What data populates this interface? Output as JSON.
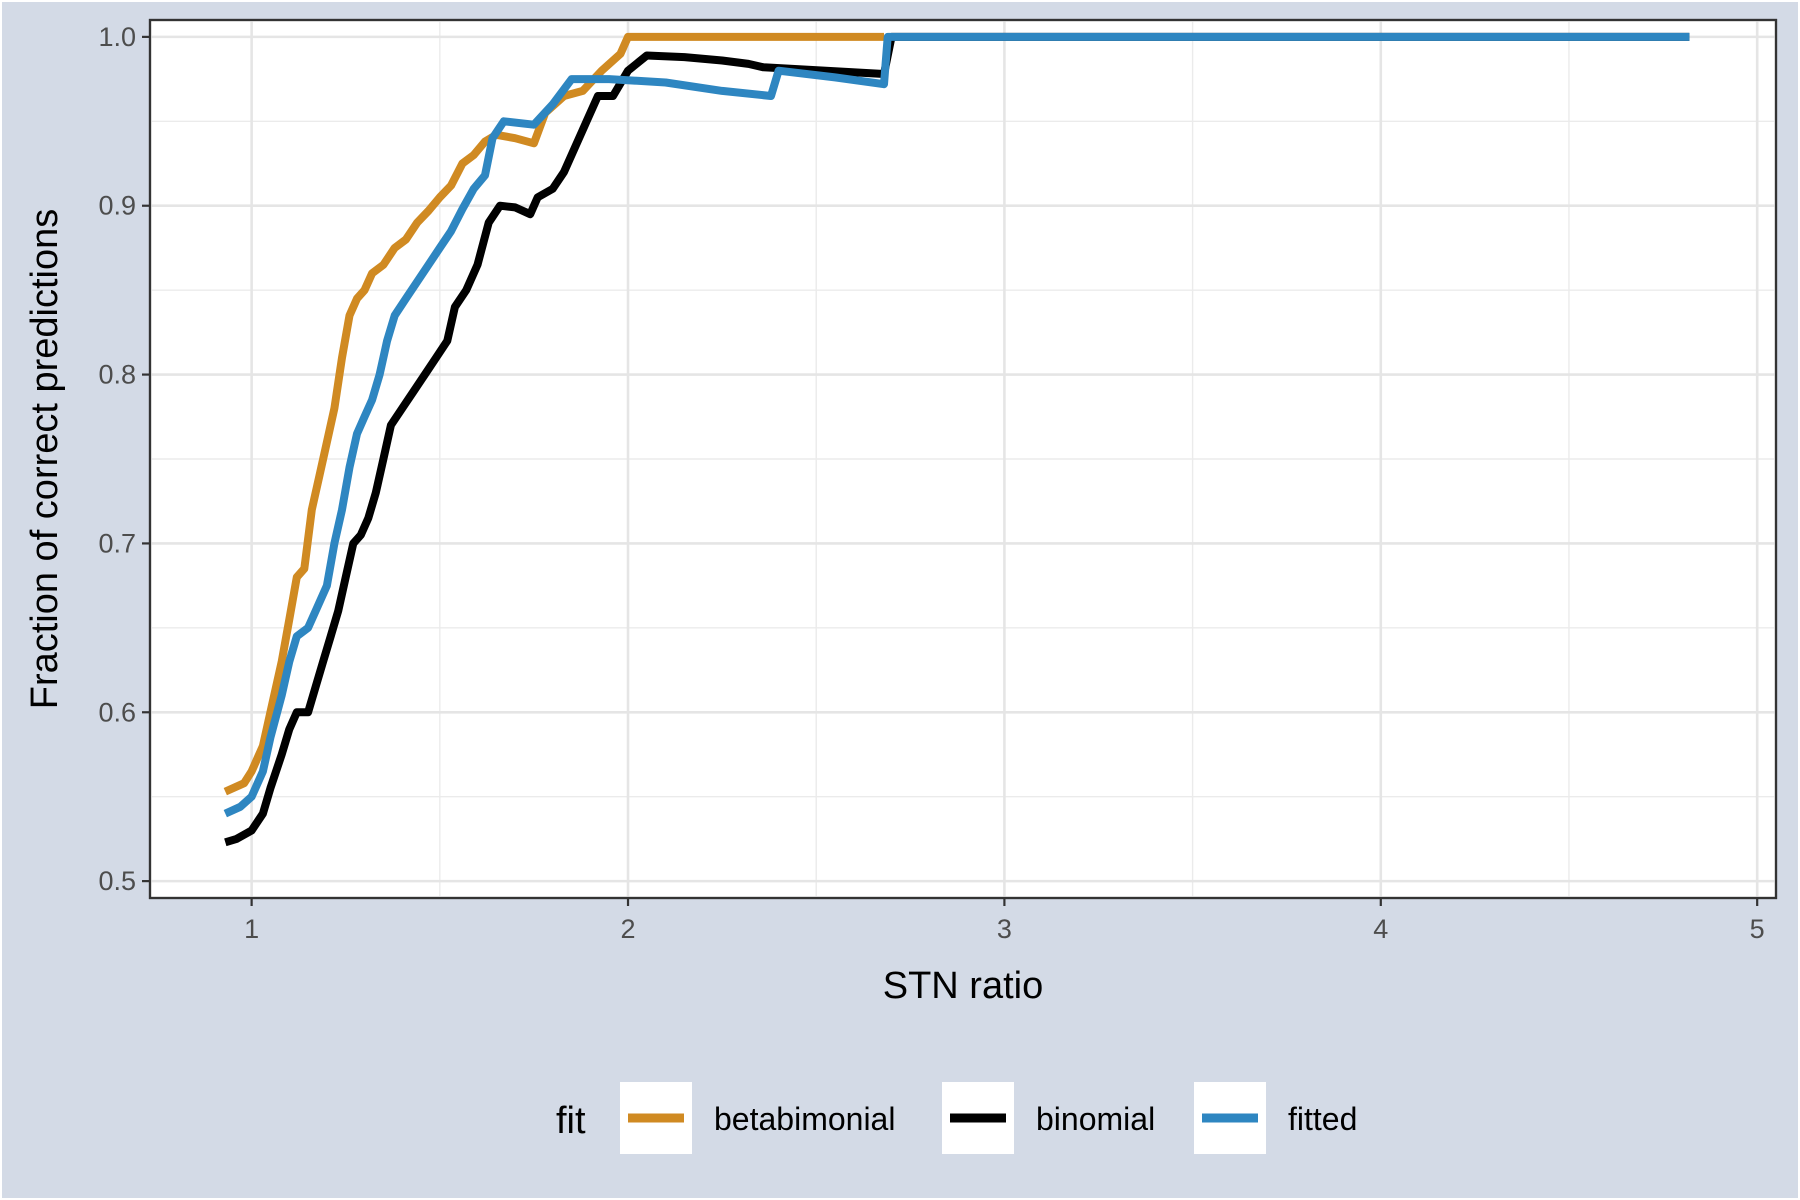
{
  "chart_data": {
    "type": "line",
    "title": "",
    "xlabel": "STN ratio",
    "ylabel": "Fraction of correct predictions",
    "xlim": [
      0.73,
      5.05
    ],
    "ylim": [
      0.49,
      1.01
    ],
    "x_ticks": [
      1,
      2,
      3,
      4,
      5
    ],
    "y_ticks": [
      0.5,
      0.6,
      0.7,
      0.8,
      0.9,
      1.0
    ],
    "x_tick_labels": [
      "1",
      "2",
      "3",
      "4",
      "5"
    ],
    "y_tick_labels": [
      "0.5",
      "0.6",
      "0.7",
      "0.8",
      "0.9",
      "1.0"
    ],
    "grid": true,
    "legend": {
      "title": "fit",
      "position": "bottom"
    },
    "series": [
      {
        "name": "betabimonial",
        "color": "#D08A22",
        "points": [
          [
            0.93,
            0.553
          ],
          [
            0.98,
            0.558
          ],
          [
            1.0,
            0.565
          ],
          [
            1.03,
            0.58
          ],
          [
            1.05,
            0.6
          ],
          [
            1.08,
            0.63
          ],
          [
            1.1,
            0.655
          ],
          [
            1.12,
            0.68
          ],
          [
            1.14,
            0.685
          ],
          [
            1.16,
            0.72
          ],
          [
            1.18,
            0.74
          ],
          [
            1.2,
            0.76
          ],
          [
            1.22,
            0.78
          ],
          [
            1.24,
            0.81
          ],
          [
            1.26,
            0.835
          ],
          [
            1.28,
            0.845
          ],
          [
            1.3,
            0.85
          ],
          [
            1.32,
            0.86
          ],
          [
            1.35,
            0.865
          ],
          [
            1.38,
            0.875
          ],
          [
            1.41,
            0.88
          ],
          [
            1.44,
            0.89
          ],
          [
            1.47,
            0.897
          ],
          [
            1.5,
            0.905
          ],
          [
            1.53,
            0.912
          ],
          [
            1.56,
            0.925
          ],
          [
            1.59,
            0.93
          ],
          [
            1.62,
            0.938
          ],
          [
            1.65,
            0.942
          ],
          [
            1.7,
            0.94
          ],
          [
            1.75,
            0.937
          ],
          [
            1.78,
            0.955
          ],
          [
            1.83,
            0.965
          ],
          [
            1.88,
            0.968
          ],
          [
            1.93,
            0.98
          ],
          [
            1.98,
            0.99
          ],
          [
            2.0,
            1.0
          ],
          [
            2.68,
            1.0
          ]
        ]
      },
      {
        "name": "binomial",
        "color": "#000000",
        "points": [
          [
            0.93,
            0.523
          ],
          [
            0.96,
            0.525
          ],
          [
            1.0,
            0.53
          ],
          [
            1.03,
            0.54
          ],
          [
            1.05,
            0.555
          ],
          [
            1.08,
            0.575
          ],
          [
            1.1,
            0.59
          ],
          [
            1.12,
            0.6
          ],
          [
            1.15,
            0.6
          ],
          [
            1.17,
            0.615
          ],
          [
            1.19,
            0.63
          ],
          [
            1.21,
            0.645
          ],
          [
            1.23,
            0.66
          ],
          [
            1.25,
            0.68
          ],
          [
            1.27,
            0.7
          ],
          [
            1.29,
            0.705
          ],
          [
            1.31,
            0.715
          ],
          [
            1.33,
            0.73
          ],
          [
            1.35,
            0.75
          ],
          [
            1.37,
            0.77
          ],
          [
            1.4,
            0.78
          ],
          [
            1.43,
            0.79
          ],
          [
            1.46,
            0.8
          ],
          [
            1.49,
            0.81
          ],
          [
            1.52,
            0.82
          ],
          [
            1.54,
            0.84
          ],
          [
            1.57,
            0.85
          ],
          [
            1.6,
            0.865
          ],
          [
            1.63,
            0.89
          ],
          [
            1.66,
            0.9
          ],
          [
            1.7,
            0.899
          ],
          [
            1.74,
            0.895
          ],
          [
            1.76,
            0.905
          ],
          [
            1.8,
            0.91
          ],
          [
            1.83,
            0.92
          ],
          [
            1.86,
            0.935
          ],
          [
            1.89,
            0.95
          ],
          [
            1.92,
            0.965
          ],
          [
            1.96,
            0.965
          ],
          [
            2.0,
            0.98
          ],
          [
            2.05,
            0.989
          ],
          [
            2.15,
            0.988
          ],
          [
            2.25,
            0.986
          ],
          [
            2.32,
            0.984
          ],
          [
            2.36,
            0.982
          ],
          [
            2.68,
            0.978
          ],
          [
            2.7,
            1.0
          ],
          [
            4.82,
            1.0
          ]
        ]
      },
      {
        "name": "fitted",
        "color": "#2E86C1",
        "points": [
          [
            0.93,
            0.54
          ],
          [
            0.97,
            0.544
          ],
          [
            1.0,
            0.55
          ],
          [
            1.03,
            0.565
          ],
          [
            1.05,
            0.585
          ],
          [
            1.08,
            0.61
          ],
          [
            1.1,
            0.63
          ],
          [
            1.12,
            0.645
          ],
          [
            1.15,
            0.65
          ],
          [
            1.17,
            0.66
          ],
          [
            1.2,
            0.675
          ],
          [
            1.22,
            0.7
          ],
          [
            1.24,
            0.72
          ],
          [
            1.26,
            0.745
          ],
          [
            1.28,
            0.765
          ],
          [
            1.3,
            0.775
          ],
          [
            1.32,
            0.785
          ],
          [
            1.34,
            0.8
          ],
          [
            1.36,
            0.82
          ],
          [
            1.38,
            0.835
          ],
          [
            1.41,
            0.845
          ],
          [
            1.44,
            0.855
          ],
          [
            1.47,
            0.865
          ],
          [
            1.5,
            0.875
          ],
          [
            1.53,
            0.885
          ],
          [
            1.56,
            0.898
          ],
          [
            1.59,
            0.91
          ],
          [
            1.62,
            0.918
          ],
          [
            1.64,
            0.94
          ],
          [
            1.67,
            0.95
          ],
          [
            1.75,
            0.948
          ],
          [
            1.8,
            0.96
          ],
          [
            1.85,
            0.975
          ],
          [
            1.95,
            0.975
          ],
          [
            2.1,
            0.973
          ],
          [
            2.25,
            0.968
          ],
          [
            2.38,
            0.965
          ],
          [
            2.4,
            0.98
          ],
          [
            2.55,
            0.976
          ],
          [
            2.68,
            0.972
          ],
          [
            2.69,
            1.0
          ],
          [
            4.82,
            1.0
          ]
        ]
      }
    ]
  }
}
